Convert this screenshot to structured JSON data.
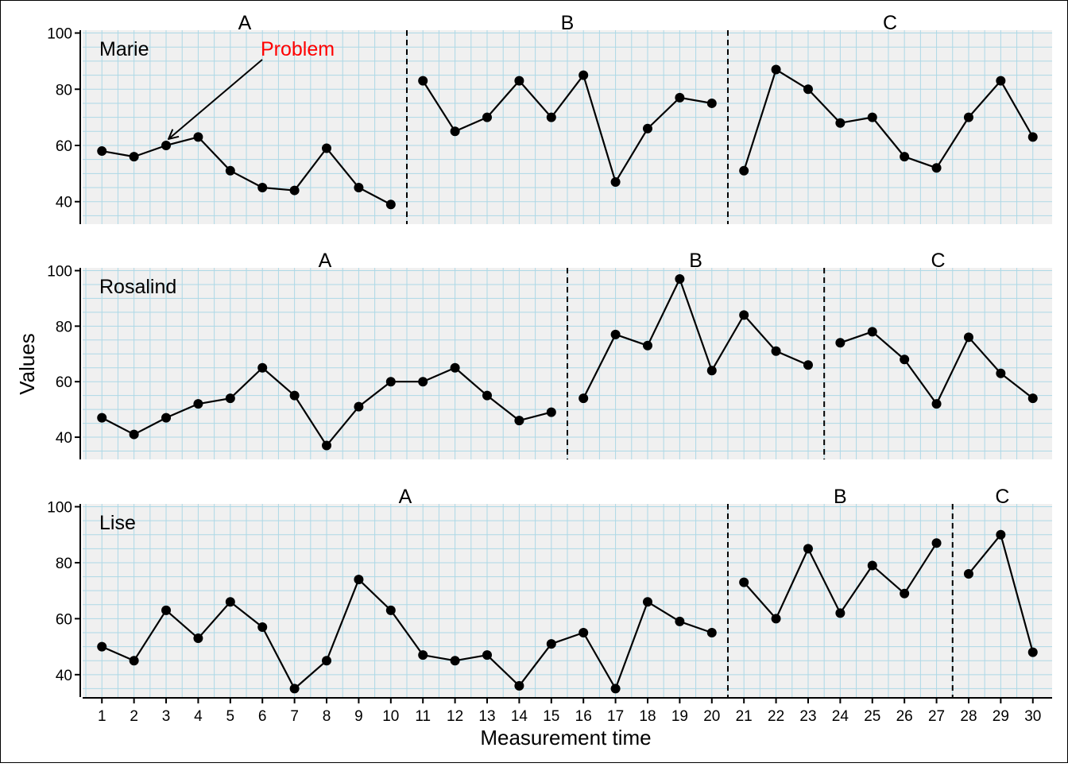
{
  "chart_data": {
    "type": "line",
    "xlabel": "Measurement time",
    "ylabel": "Values",
    "x_ticks": [
      1,
      2,
      3,
      4,
      5,
      6,
      7,
      8,
      9,
      10,
      11,
      12,
      13,
      14,
      15,
      16,
      17,
      18,
      19,
      20,
      21,
      22,
      23,
      24,
      25,
      26,
      27,
      28,
      29,
      30
    ],
    "ylim": [
      32,
      101
    ],
    "y_ticks": [
      40,
      60,
      80,
      100
    ],
    "grid": true,
    "grid_color": "#add8e6",
    "panel_background": "#f0f0f0",
    "line_color": "#000000",
    "annotation_color": "#ff0000",
    "panels": [
      {
        "participant": "Marie",
        "phase_changes": [
          10.5,
          20.5
        ],
        "phases": [
          {
            "label": "A",
            "x": [
              1,
              2,
              3,
              4,
              5,
              6,
              7,
              8,
              9,
              10
            ],
            "y": [
              58,
              56,
              60,
              63,
              51,
              45,
              44,
              59,
              45,
              39
            ]
          },
          {
            "label": "B",
            "x": [
              11,
              12,
              13,
              14,
              15,
              16,
              17,
              18,
              19,
              20
            ],
            "y": [
              83,
              65,
              70,
              83,
              70,
              85,
              47,
              66,
              77,
              75
            ]
          },
          {
            "label": "C",
            "x": [
              21,
              22,
              23,
              24,
              25,
              26,
              27,
              28,
              29,
              30
            ],
            "y": [
              51,
              87,
              80,
              68,
              70,
              56,
              52,
              70,
              83,
              63
            ]
          }
        ],
        "annotation": {
          "text": "Problem",
          "target": {
            "x": 3,
            "y": 60
          }
        }
      },
      {
        "participant": "Rosalind",
        "phase_changes": [
          15.5,
          23.5
        ],
        "phases": [
          {
            "label": "A",
            "x": [
              1,
              2,
              3,
              4,
              5,
              6,
              7,
              8,
              9,
              10,
              11,
              12,
              13,
              14,
              15
            ],
            "y": [
              47,
              41,
              47,
              52,
              54,
              65,
              55,
              37,
              51,
              60,
              60,
              65,
              55,
              46,
              49
            ]
          },
          {
            "label": "B",
            "x": [
              16,
              17,
              18,
              19,
              20,
              21,
              22,
              23
            ],
            "y": [
              54,
              77,
              73,
              97,
              64,
              84,
              71,
              66
            ]
          },
          {
            "label": "C",
            "x": [
              24,
              25,
              26,
              27,
              28,
              29,
              30
            ],
            "y": [
              74,
              78,
              68,
              52,
              76,
              63,
              54
            ]
          }
        ]
      },
      {
        "participant": "Lise",
        "phase_changes": [
          20.5,
          27.5
        ],
        "phases": [
          {
            "label": "A",
            "x": [
              1,
              2,
              3,
              4,
              5,
              6,
              7,
              8,
              9,
              10,
              11,
              12,
              13,
              14,
              15,
              16,
              17,
              18,
              19,
              20
            ],
            "y": [
              50,
              45,
              63,
              53,
              66,
              57,
              35,
              45,
              74,
              63,
              47,
              45,
              47,
              36,
              51,
              55,
              35,
              66,
              59,
              55
            ]
          },
          {
            "label": "B",
            "x": [
              21,
              22,
              23,
              24,
              25,
              26,
              27
            ],
            "y": [
              73,
              60,
              85,
              62,
              79,
              69,
              87
            ]
          },
          {
            "label": "C",
            "x": [
              28,
              29,
              30
            ],
            "y": [
              76,
              90,
              48
            ]
          }
        ]
      }
    ]
  }
}
